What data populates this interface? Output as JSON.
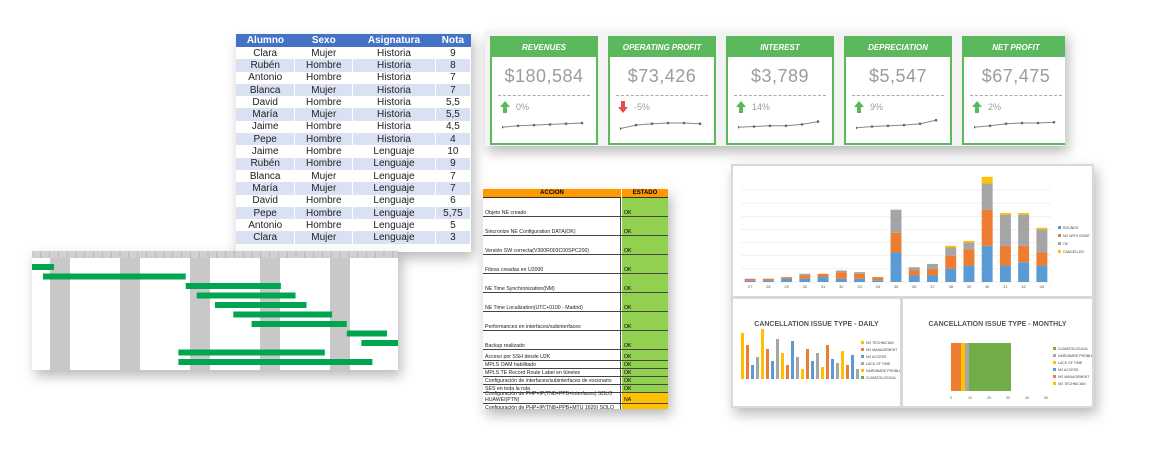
{
  "students": {
    "headers": [
      "Alumno",
      "Sexo",
      "Asignatura",
      "Nota"
    ],
    "rows": [
      [
        "Clara",
        "Mujer",
        "Historia",
        "9"
      ],
      [
        "Rubén",
        "Hombre",
        "Historia",
        "8"
      ],
      [
        "Antonio",
        "Hombre",
        "Historia",
        "7"
      ],
      [
        "Blanca",
        "Mujer",
        "Historia",
        "7"
      ],
      [
        "David",
        "Hombre",
        "Historia",
        "5,5"
      ],
      [
        "María",
        "Mujer",
        "Historia",
        "5,5"
      ],
      [
        "Jaime",
        "Hombre",
        "Historia",
        "4,5"
      ],
      [
        "Pepe",
        "Hombre",
        "Historia",
        "4"
      ],
      [
        "Jaime",
        "Hombre",
        "Lenguaje",
        "10"
      ],
      [
        "Rubén",
        "Hombre",
        "Lenguaje",
        "9"
      ],
      [
        "Blanca",
        "Mujer",
        "Lenguaje",
        "7"
      ],
      [
        "María",
        "Mujer",
        "Lenguaje",
        "7"
      ],
      [
        "David",
        "Hombre",
        "Lenguaje",
        "6"
      ],
      [
        "Pepe",
        "Hombre",
        "Lenguaje",
        "5,75"
      ],
      [
        "Antonio",
        "Hombre",
        "Lenguaje",
        "5"
      ],
      [
        "Clara",
        "Mujer",
        "Lenguaje",
        "3"
      ]
    ]
  },
  "kpi": {
    "accent": "#5cb85c",
    "cards": [
      {
        "title": "REVENUES",
        "value": "$180,584",
        "pct": "0%",
        "arrow": "up",
        "spark": [
          0.2,
          0.3,
          0.35,
          0.4,
          0.45,
          0.5
        ]
      },
      {
        "title": "OPERATING PROFIT",
        "value": "$73,426",
        "pct": "-5%",
        "arrow": "down",
        "spark": [
          0.1,
          0.35,
          0.45,
          0.5,
          0.5,
          0.45
        ]
      },
      {
        "title": "INTEREST",
        "value": "$3,789",
        "pct": "14%",
        "arrow": "up",
        "spark": [
          0.2,
          0.25,
          0.3,
          0.3,
          0.4,
          0.6
        ]
      },
      {
        "title": "DEPRECIATION",
        "value": "$5,547",
        "pct": "9%",
        "arrow": "up",
        "spark": [
          0.15,
          0.25,
          0.3,
          0.35,
          0.45,
          0.7
        ]
      },
      {
        "title": "NET PROFIT",
        "value": "$67,475",
        "pct": "2%",
        "arrow": "up",
        "spark": [
          0.2,
          0.3,
          0.45,
          0.5,
          0.5,
          0.55
        ]
      }
    ]
  },
  "gantt": {
    "bar_color": "#00a550",
    "tasks": [
      {
        "start": 0.0,
        "end": 0.06
      },
      {
        "start": 0.03,
        "end": 0.42
      },
      {
        "start": 0.42,
        "end": 0.68
      },
      {
        "start": 0.45,
        "end": 0.72
      },
      {
        "start": 0.5,
        "end": 0.75
      },
      {
        "start": 0.55,
        "end": 0.82
      },
      {
        "start": 0.6,
        "end": 0.86
      },
      {
        "start": 0.86,
        "end": 0.97
      },
      {
        "start": 0.9,
        "end": 1.0
      },
      {
        "start": 0.4,
        "end": 0.8
      },
      {
        "start": 0.4,
        "end": 0.93
      }
    ]
  },
  "accion": {
    "headers": [
      "ACCIÓN",
      "ESTADO"
    ],
    "rows": [
      {
        "accion": "Objeto NE creado",
        "estado": "OK"
      },
      {
        "accion": "Sincronize NE Configuration DATA(OK)",
        "estado": "OK"
      },
      {
        "accion": "Versión SW correcta(V300R003C00SPC200)",
        "estado": "OK"
      },
      {
        "accion": "Fibras creadas en U2000",
        "estado": "OK"
      },
      {
        "accion": "NE Time Synchronization(NM)",
        "estado": "OK"
      },
      {
        "accion": "NE Time Localization(UTC+0100 - Madrid)",
        "estado": "OK"
      },
      {
        "accion": "Performances en interfaces/subinterfaces",
        "estado": "OK"
      },
      {
        "accion": "Backup realizado",
        "estado": "OK"
      },
      {
        "accion": "Acceso por SSH desde U2K",
        "estado": "OK"
      },
      {
        "accion": "MPLS OAM habilitado",
        "estado": "OK"
      },
      {
        "accion": "MPLS TE Record Route Label en túneles",
        "estado": "OK"
      },
      {
        "accion": "Configuración de interfaces/subinterfaces de escenario",
        "estado": "OK"
      },
      {
        "accion": "SES en toda la ruta",
        "estado": "OK"
      },
      {
        "accion": "Configuración de PHP+IP(TN8+PPB+interfaces) SOLO HUAWEI(PTN)",
        "estado": "NA"
      },
      {
        "accion": "Configuración de PHP+IP(TN8+PPB+MTU 1620) SOLO HUAWEI(PTN)",
        "estado": "NA"
      }
    ]
  },
  "dashboard": {
    "colors": {
      "blue": "#5b9bd5",
      "orange": "#ed7d31",
      "grey": "#a5a5a5",
      "yellow": "#ffc000",
      "green": "#70ad47"
    },
    "top_chart": {
      "type": "bar",
      "x": [
        "27",
        "28",
        "29",
        "30",
        "31",
        "32",
        "33",
        "34",
        "35",
        "36",
        "37",
        "38",
        "39",
        "40",
        "41",
        "42",
        "43"
      ],
      "series": [
        {
          "values": [
            1,
            1,
            2,
            2,
            3,
            2,
            2,
            1,
            18,
            4,
            4,
            8,
            10,
            22,
            10,
            12,
            10
          ]
        },
        {
          "values": [
            1,
            1,
            1,
            2,
            2,
            4,
            3,
            2,
            12,
            3,
            4,
            8,
            10,
            22,
            12,
            10,
            8
          ]
        },
        {
          "values": [
            0,
            0,
            0,
            1,
            0,
            1,
            1,
            0,
            14,
            2,
            3,
            5,
            4,
            16,
            19,
            19,
            14
          ]
        },
        {
          "values": [
            0,
            0,
            0,
            0,
            0,
            0,
            0,
            0,
            0,
            0,
            0,
            1,
            1,
            4,
            1,
            1,
            1
          ]
        }
      ],
      "legend": [
        "ROUNDS",
        "NO WITH ISSUE",
        "OK",
        "CANCELLED"
      ]
    },
    "daily": {
      "title": "CANCELLATION ISSUE TYPE - DAILY",
      "legend": [
        "NO TECHNICIAN",
        "NO MANAGEMENT",
        "NO ACCESS",
        "LACK OF TIME",
        "HARDWARE PROBLEM",
        "CLIMATOLOGICAL"
      ]
    },
    "monthly": {
      "title": "CANCELLATION ISSUE TYPE - MONTHLY",
      "legend": [
        "CLIMATOLOGICAL",
        "HARDWARE PROBLEM",
        "LACK OF TIME",
        "NO ACCESS",
        "NO MANAGEMENT",
        "NO TECHNICIAN"
      ],
      "ticks": [
        "0",
        "10",
        "20",
        "30",
        "40",
        "50"
      ]
    }
  }
}
